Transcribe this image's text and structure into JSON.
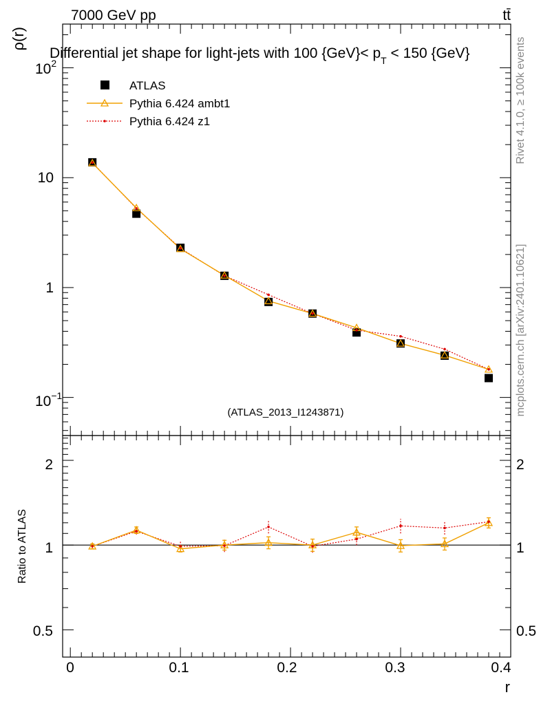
{
  "header": {
    "energy_label": "7000 GeV pp",
    "process_label": "tt̄"
  },
  "side_text": {
    "rivet": "Rivet 4.1.0, ≥ 100k events",
    "mcplots": "mcplots.cern.ch [arXiv:2401.10621]"
  },
  "colors": {
    "atlas": "#000000",
    "ambt1": "#f0a000",
    "z1": "#dd0000",
    "watermark": "#999999"
  },
  "chart_data": [
    {
      "type": "scatter",
      "panel": "main",
      "title_pre": "Differential jet shape for light-jets with 100 {GeV}< p",
      "title_sub": "T",
      "title_post": " < 150 {GeV}",
      "ylabel": "ρ(r)",
      "yscale": "log",
      "ylim": [
        0.045,
        250
      ],
      "xlim": [
        -0.007,
        0.4
      ],
      "ytick_labels": [
        "10",
        "1",
        "10"
      ],
      "ytick_exponents": [
        "2",
        "",
        "−1"
      ],
      "watermark": "(ATLAS_2013_I1243871)",
      "legend": [
        "ATLAS",
        "Pythia 6.424 ambt1",
        "Pythia 6.424 z1"
      ],
      "x": [
        0.02,
        0.06,
        0.1,
        0.14,
        0.18,
        0.22,
        0.26,
        0.3,
        0.34,
        0.38
      ],
      "series": [
        {
          "name": "ATLAS",
          "values": [
            13.8,
            4.7,
            2.3,
            1.28,
            0.74,
            0.58,
            0.39,
            0.31,
            0.24,
            0.15
          ]
        },
        {
          "name": "Pythia 6.424 ambt1",
          "values": [
            13.6,
            5.3,
            2.25,
            1.29,
            0.755,
            0.58,
            0.43,
            0.31,
            0.242,
            0.18
          ]
        },
        {
          "name": "Pythia 6.424 z1",
          "values": [
            13.7,
            5.25,
            2.28,
            1.28,
            0.86,
            0.58,
            0.41,
            0.36,
            0.275,
            0.18
          ]
        }
      ]
    },
    {
      "type": "line",
      "panel": "ratio",
      "ylabel": "Ratio to ATLAS",
      "xlabel": "r",
      "yscale": "log",
      "ylim": [
        0.4,
        2.45
      ],
      "xlim": [
        -0.007,
        0.4
      ],
      "ytick_labels": [
        "2",
        "1",
        "0.5"
      ],
      "xtick_labels": [
        "0",
        "0.1",
        "0.2",
        "0.3",
        "0.4"
      ],
      "x": [
        0.02,
        0.06,
        0.1,
        0.14,
        0.18,
        0.22,
        0.26,
        0.3,
        0.34,
        0.38
      ],
      "series": [
        {
          "name": "Pythia 6.424 ambt1",
          "values": [
            0.99,
            1.13,
            0.97,
            1.0,
            1.02,
            1.0,
            1.11,
            0.995,
            1.01,
            1.2
          ],
          "errors": [
            0.02,
            0.03,
            0.025,
            0.04,
            0.05,
            0.05,
            0.05,
            0.05,
            0.05,
            0.05
          ]
        },
        {
          "name": "Pythia 6.424 z1",
          "values": [
            0.99,
            1.12,
            0.99,
            0.995,
            1.16,
            0.99,
            1.05,
            1.17,
            1.15,
            1.21
          ],
          "errors": [
            0.015,
            0.03,
            0.04,
            0.05,
            0.06,
            0.05,
            0.05,
            0.07,
            0.06,
            0.05
          ]
        }
      ]
    }
  ]
}
